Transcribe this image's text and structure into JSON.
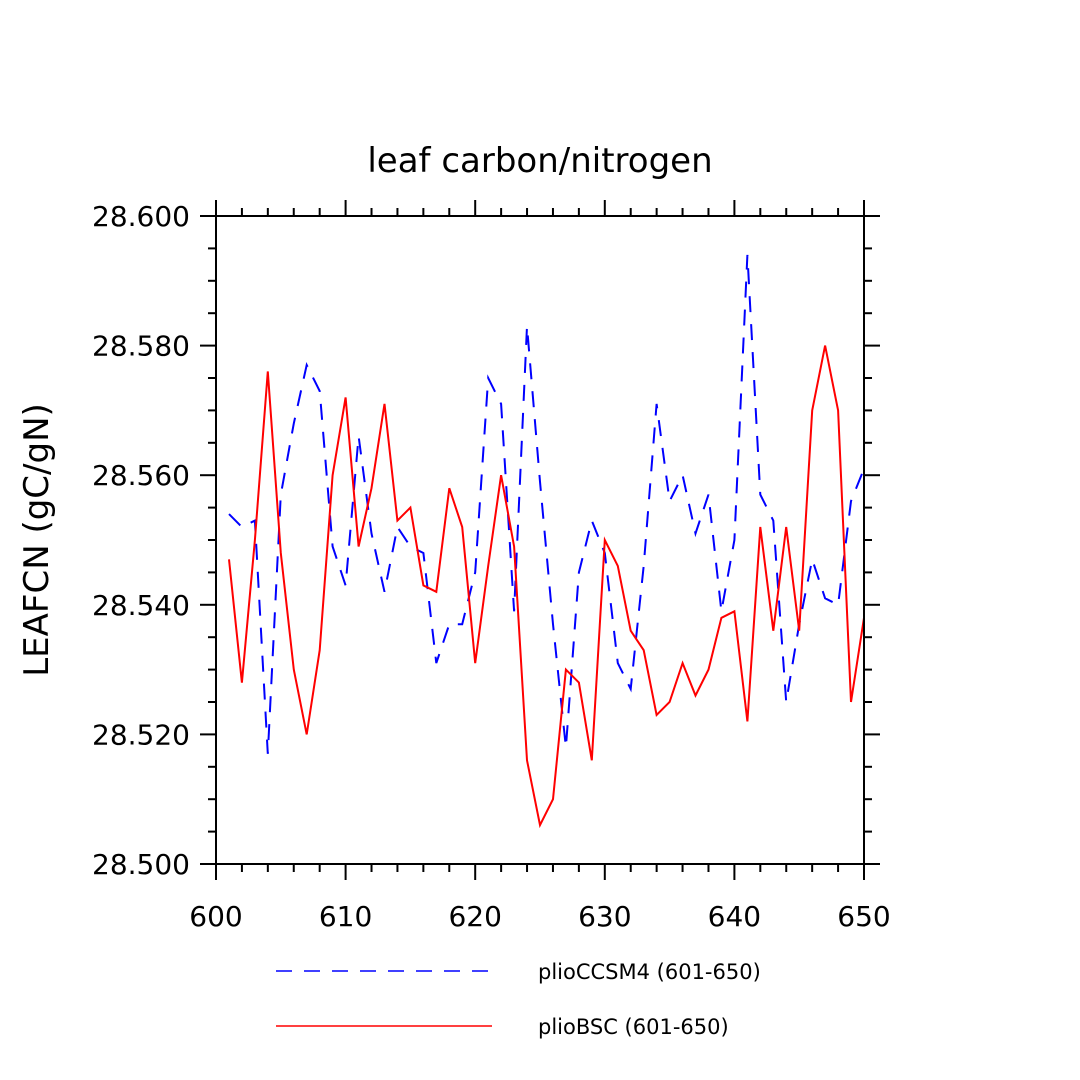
{
  "chart_data": {
    "type": "line",
    "title": "leaf carbon/nitrogen",
    "xlabel": "",
    "ylabel": "LEAFCN  (gC/gN)",
    "xlim": [
      600,
      650
    ],
    "ylim": [
      28.5,
      28.6
    ],
    "x_ticks": [
      600,
      610,
      620,
      630,
      640,
      650
    ],
    "x_tick_labels": [
      "600",
      "610",
      "620",
      "630",
      "640",
      "650"
    ],
    "y_ticks": [
      28.5,
      28.52,
      28.54,
      28.56,
      28.58,
      28.6
    ],
    "y_tick_labels": [
      "28.500",
      "28.520",
      "28.540",
      "28.560",
      "28.580",
      "28.600"
    ],
    "grid": false,
    "legend_position": "bottom",
    "x": [
      601,
      602,
      603,
      604,
      605,
      606,
      607,
      608,
      609,
      610,
      611,
      612,
      613,
      614,
      615,
      616,
      617,
      618,
      619,
      620,
      621,
      622,
      623,
      624,
      625,
      626,
      627,
      628,
      629,
      630,
      631,
      632,
      633,
      634,
      635,
      636,
      637,
      638,
      639,
      640,
      641,
      642,
      643,
      644,
      645,
      646,
      647,
      648,
      649,
      650
    ],
    "series": [
      {
        "name": "plioCCSM4 (601-650)",
        "color": "#0000ff",
        "dash": "dashed",
        "values": [
          28.554,
          28.552,
          28.553,
          28.517,
          28.557,
          28.568,
          28.577,
          28.573,
          28.549,
          28.543,
          28.566,
          28.551,
          28.542,
          28.552,
          28.549,
          28.548,
          28.531,
          28.537,
          28.537,
          28.545,
          28.575,
          28.571,
          28.539,
          28.583,
          28.559,
          28.537,
          28.518,
          28.545,
          28.553,
          28.548,
          28.531,
          28.527,
          28.546,
          28.571,
          28.556,
          28.56,
          28.551,
          28.557,
          28.539,
          28.55,
          28.594,
          28.557,
          28.553,
          28.525,
          28.537,
          28.547,
          28.541,
          28.54,
          28.556,
          28.561
        ]
      },
      {
        "name": "plioBSC (601-650)",
        "color": "#ff0000",
        "dash": "solid",
        "values": [
          28.547,
          28.528,
          28.55,
          28.576,
          28.548,
          28.53,
          28.52,
          28.533,
          28.56,
          28.572,
          28.549,
          28.558,
          28.571,
          28.553,
          28.555,
          28.543,
          28.542,
          28.558,
          28.552,
          28.531,
          28.546,
          28.56,
          28.549,
          28.516,
          28.506,
          28.51,
          28.53,
          28.528,
          28.516,
          28.55,
          28.546,
          28.536,
          28.533,
          28.523,
          28.525,
          28.531,
          28.526,
          28.53,
          28.538,
          28.539,
          28.522,
          28.552,
          28.536,
          28.552,
          28.536,
          28.57,
          28.58,
          28.57,
          28.525,
          28.538
        ]
      }
    ]
  }
}
